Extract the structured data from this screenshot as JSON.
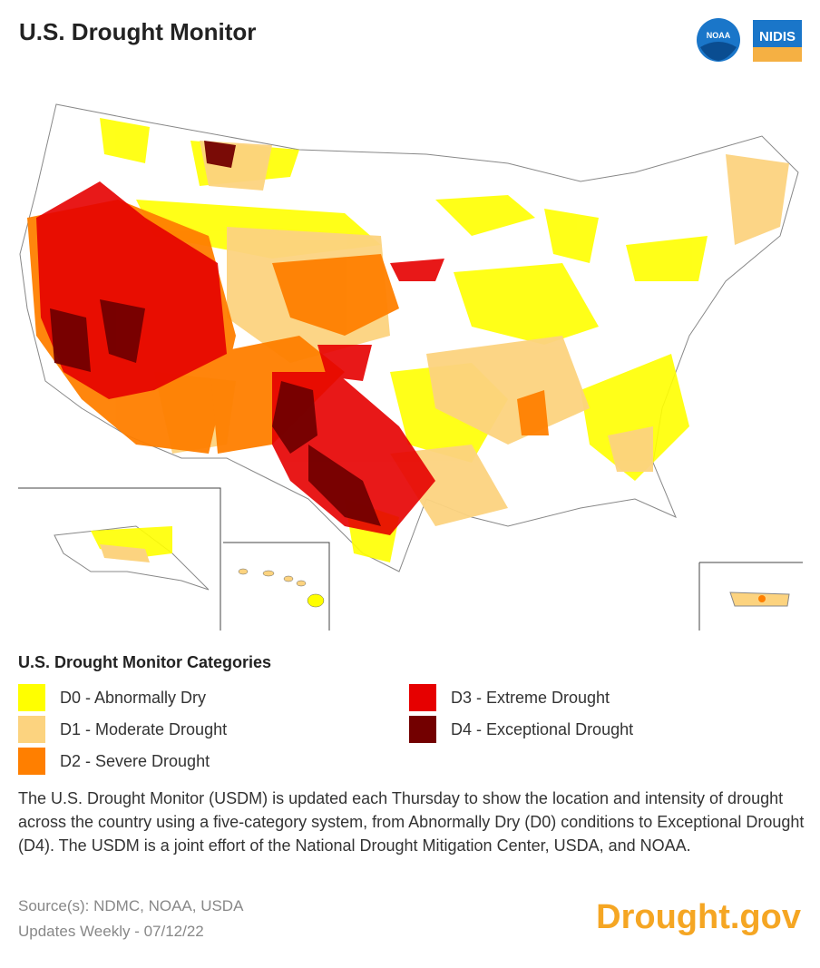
{
  "header": {
    "title": "U.S. Drought Monitor",
    "logo_left_text": "NOAA",
    "logo_right_text": "NIDIS"
  },
  "legend": {
    "title": "U.S. Drought Monitor Categories",
    "items": [
      {
        "label": "D0 - Abnormally Dry",
        "color": "#ffff00"
      },
      {
        "label": "D1 - Moderate Drought",
        "color": "#fcd37f"
      },
      {
        "label": "D2 - Severe Drought",
        "color": "#ff7f00"
      },
      {
        "label": "D3 - Extreme Drought",
        "color": "#e60000"
      },
      {
        "label": "D4 - Exceptional Drought",
        "color": "#730000"
      }
    ]
  },
  "description": "The U.S. Drought Monitor (USDM) is updated each Thursday to show the location and intensity of drought across the country using a five-category system, from Abnormally Dry (D0) conditions to Exceptional Drought (D4). The USDM is a joint effort of the National Drought Mitigation Center, USDA, and NOAA.",
  "footer": {
    "sources": "Source(s): NDMC, NOAA, USDA",
    "updated": "Updates Weekly - 07/12/22",
    "brand": "Drought.gov"
  }
}
